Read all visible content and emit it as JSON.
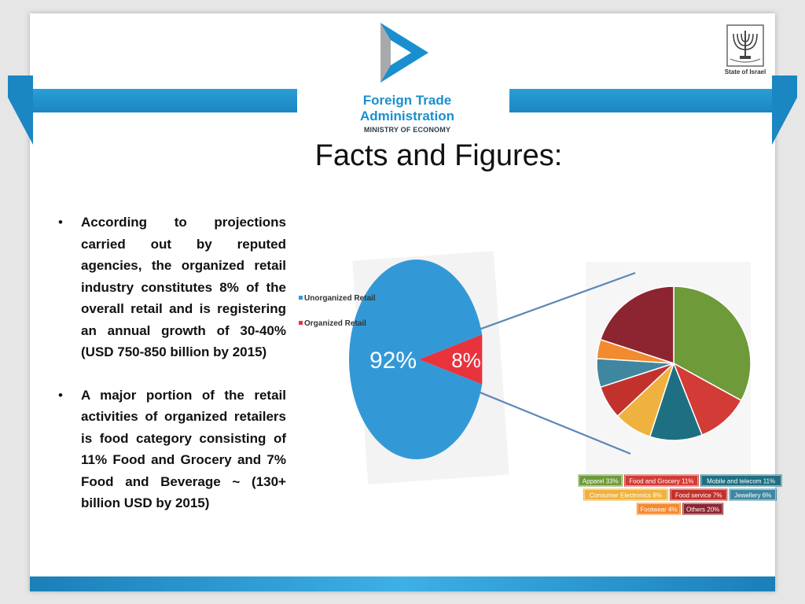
{
  "header": {
    "agency_line1": "Foreign Trade",
    "agency_line2": "Administration",
    "ministry": "MINISTRY OF ECONOMY",
    "state_label": "State of Israel",
    "accent_color": "#1a8fd0"
  },
  "title": "Facts and Figures:",
  "bullets": [
    "According to projections carried out by reputed agencies, the organized retail industry constitutes 8% of the overall retail and is registering an annual growth of 30-40% (USD 750-850 billion by 2015)",
    "A major portion of the retail activities of organized retailers is food category consisting of 11% Food and Grocery and 7% Food and Beverage ~ (130+ billion USD by 2015)"
  ],
  "chart_data": [
    {
      "type": "pie",
      "categories": [
        "Unorganized Retail",
        "Organized Retail"
      ],
      "values": [
        92,
        8
      ],
      "data_labels": [
        "92%",
        "8%"
      ],
      "colors": [
        "#3399d6",
        "#e8333d"
      ],
      "legend": "left"
    },
    {
      "type": "pie",
      "categories": [
        "Apparel",
        "Food and Grocery",
        "Mobile and telecom",
        "Consumer Electronics",
        "Food service",
        "Jewellery",
        "Footwear",
        "Others"
      ],
      "values": [
        33,
        11,
        11,
        8,
        7,
        6,
        4,
        20
      ],
      "legend_labels": [
        "Apparel 33%",
        "Food and Grocery 11%",
        "Mobile and telecom 11%",
        "Consumer Electronics 8%",
        "Food service 7%",
        "Jewellery 6%",
        "Footwear 4%",
        "Others 20%"
      ],
      "colors": [
        "#6e9a3a",
        "#d23b36",
        "#1f6f82",
        "#f0b23e",
        "#c2322d",
        "#3f87a0",
        "#f28a2e",
        "#8c2530"
      ],
      "legend": "bottom"
    }
  ]
}
